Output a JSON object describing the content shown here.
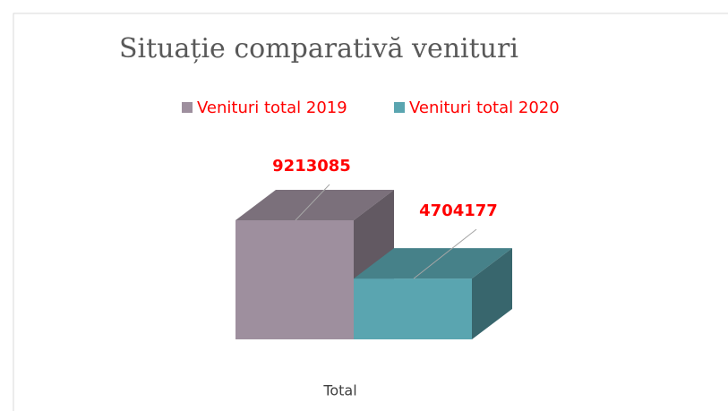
{
  "chart_data": {
    "type": "bar3d",
    "title": "Situație comparativă venituri",
    "categories": [
      "Total"
    ],
    "series": [
      {
        "name": "Venituri total 2019",
        "color": "#9e8f9e",
        "values": [
          9213085
        ]
      },
      {
        "name": "Venituri total 2020",
        "color": "#5aa5b0",
        "values": [
          4704177
        ]
      }
    ],
    "legend": "top"
  }
}
